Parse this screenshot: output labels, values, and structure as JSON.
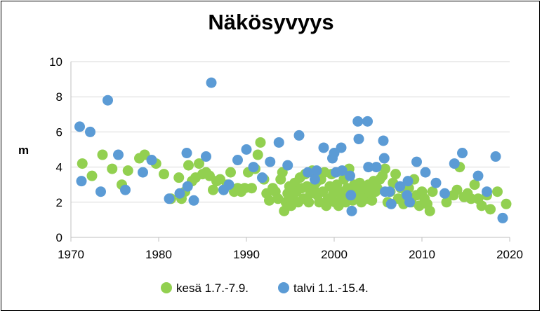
{
  "chart_data": {
    "type": "scatter",
    "title": "Näkösyvyys",
    "ylabel": "m",
    "xlabel": "",
    "xlim": [
      1970,
      2020
    ],
    "ylim": [
      0,
      10
    ],
    "x_ticks": [
      "1970",
      "1980",
      "1990",
      "2000",
      "2010",
      "2020"
    ],
    "y_ticks": [
      "0",
      "2",
      "4",
      "6",
      "8",
      "10"
    ],
    "grid": "horizontal",
    "legend": "bottom",
    "series": [
      {
        "name": "kesä 1.7.-7.9.",
        "color": "#92d050",
        "points": [
          [
            1971.3,
            4.2
          ],
          [
            1972.4,
            3.5
          ],
          [
            1973.6,
            4.7
          ],
          [
            1974.7,
            3.9
          ],
          [
            1975.8,
            3.0
          ],
          [
            1976.5,
            3.8
          ],
          [
            1977.8,
            4.5
          ],
          [
            1978.4,
            4.7
          ],
          [
            1979.7,
            4.2
          ],
          [
            1980.6,
            3.6
          ],
          [
            1981.4,
            2.2
          ],
          [
            1982.3,
            3.4
          ],
          [
            1982.6,
            2.2
          ],
          [
            1983.0,
            2.6
          ],
          [
            1983.4,
            4.1
          ],
          [
            1983.8,
            3.2
          ],
          [
            1984.2,
            3.4
          ],
          [
            1984.6,
            4.2
          ],
          [
            1985.0,
            3.6
          ],
          [
            1985.4,
            3.7
          ],
          [
            1985.8,
            3.5
          ],
          [
            1986.2,
            2.7
          ],
          [
            1986.6,
            3.2
          ],
          [
            1987.0,
            3.3
          ],
          [
            1987.4,
            2.7
          ],
          [
            1987.8,
            3.0
          ],
          [
            1988.2,
            3.7
          ],
          [
            1988.6,
            2.6
          ],
          [
            1989.0,
            2.8
          ],
          [
            1989.4,
            2.6
          ],
          [
            1989.8,
            2.8
          ],
          [
            1990.2,
            3.7
          ],
          [
            1990.6,
            2.8
          ],
          [
            1991.0,
            3.9
          ],
          [
            1991.3,
            4.7
          ],
          [
            1991.6,
            5.4
          ],
          [
            1992.0,
            3.3
          ],
          [
            1992.3,
            2.5
          ],
          [
            1992.6,
            2.1
          ],
          [
            1993.0,
            2.8
          ],
          [
            1993.3,
            2.6
          ],
          [
            1993.6,
            2.2
          ],
          [
            1993.9,
            3.3
          ],
          [
            1994.1,
            3.7
          ],
          [
            1994.3,
            1.5
          ],
          [
            1994.5,
            2.0
          ],
          [
            1994.7,
            2.5
          ],
          [
            1994.9,
            2.9
          ],
          [
            1995.1,
            1.8
          ],
          [
            1995.3,
            2.3
          ],
          [
            1995.5,
            3.1
          ],
          [
            1995.7,
            2.6
          ],
          [
            1995.9,
            2.0
          ],
          [
            1996.1,
            3.4
          ],
          [
            1996.3,
            2.8
          ],
          [
            1996.5,
            2.2
          ],
          [
            1996.7,
            3.6
          ],
          [
            1996.9,
            2.9
          ],
          [
            1997.1,
            2.0
          ],
          [
            1997.3,
            2.5
          ],
          [
            1997.5,
            3.8
          ],
          [
            1997.7,
            2.7
          ],
          [
            1997.9,
            3.1
          ],
          [
            1998.1,
            2.4
          ],
          [
            1998.3,
            2.0
          ],
          [
            1998.5,
            3.3
          ],
          [
            1998.7,
            2.6
          ],
          [
            1998.9,
            3.7
          ],
          [
            1999.1,
            1.8
          ],
          [
            1999.3,
            2.2
          ],
          [
            1999.5,
            2.9
          ],
          [
            1999.7,
            3.6
          ],
          [
            1999.9,
            2.5
          ],
          [
            2000.1,
            2.0
          ],
          [
            2000.3,
            3.0
          ],
          [
            2000.5,
            1.8
          ],
          [
            2000.7,
            2.6
          ],
          [
            2000.9,
            2.3
          ],
          [
            2001.1,
            3.3
          ],
          [
            2001.3,
            2.0
          ],
          [
            2001.5,
            2.8
          ],
          [
            2001.7,
            3.9
          ],
          [
            2001.9,
            2.4
          ],
          [
            2002.1,
            2.1
          ],
          [
            2002.3,
            3.0
          ],
          [
            2002.5,
            2.6
          ],
          [
            2002.7,
            2.2
          ],
          [
            2002.9,
            3.1
          ],
          [
            2003.1,
            2.0
          ],
          [
            2003.3,
            2.4
          ],
          [
            2003.5,
            2.8
          ],
          [
            2003.7,
            2.2
          ],
          [
            2003.9,
            3.0
          ],
          [
            2004.1,
            2.5
          ],
          [
            2004.3,
            2.1
          ],
          [
            2004.5,
            3.2
          ],
          [
            2004.7,
            2.6
          ],
          [
            2004.9,
            2.8
          ],
          [
            2005.2,
            3.3
          ],
          [
            2005.5,
            3.5
          ],
          [
            2005.8,
            3.9
          ],
          [
            2006.1,
            2.0
          ],
          [
            2006.4,
            2.6
          ],
          [
            2006.7,
            3.1
          ],
          [
            2007.0,
            3.6
          ],
          [
            2007.3,
            2.2
          ],
          [
            2007.6,
            2.8
          ],
          [
            2007.9,
            1.9
          ],
          [
            2008.2,
            2.4
          ],
          [
            2008.5,
            2.8
          ],
          [
            2008.8,
            2.0
          ],
          [
            2009.1,
            3.3
          ],
          [
            2009.4,
            2.4
          ],
          [
            2009.7,
            1.8
          ],
          [
            2010.0,
            2.6
          ],
          [
            2010.3,
            2.2
          ],
          [
            2010.6,
            1.9
          ],
          [
            2010.9,
            1.5
          ],
          [
            2011.2,
            2.6
          ],
          [
            2012.8,
            2.0
          ],
          [
            2013.6,
            2.4
          ],
          [
            2014.0,
            2.7
          ],
          [
            2014.3,
            4.0
          ],
          [
            2014.8,
            2.3
          ],
          [
            2015.2,
            2.5
          ],
          [
            2015.6,
            2.2
          ],
          [
            2016.0,
            3.0
          ],
          [
            2016.4,
            2.2
          ],
          [
            2016.8,
            1.8
          ],
          [
            2017.4,
            2.4
          ],
          [
            2017.8,
            1.6
          ],
          [
            2018.6,
            2.6
          ],
          [
            2019.6,
            1.9
          ]
        ]
      },
      {
        "name": "talvi 1.1.-15.4.",
        "color": "#5b9bd5",
        "points": [
          [
            1971.0,
            6.3
          ],
          [
            1971.2,
            3.2
          ],
          [
            1972.2,
            6.0
          ],
          [
            1973.4,
            2.6
          ],
          [
            1974.2,
            7.8
          ],
          [
            1975.4,
            4.7
          ],
          [
            1976.2,
            2.7
          ],
          [
            1978.2,
            3.7
          ],
          [
            1979.2,
            4.4
          ],
          [
            1981.2,
            2.2
          ],
          [
            1982.4,
            2.5
          ],
          [
            1983.2,
            4.8
          ],
          [
            1983.3,
            2.9
          ],
          [
            1984.0,
            2.1
          ],
          [
            1985.4,
            4.6
          ],
          [
            1986.0,
            8.8
          ],
          [
            1987.4,
            2.7
          ],
          [
            1988.0,
            3.0
          ],
          [
            1989.0,
            4.4
          ],
          [
            1990.0,
            5.0
          ],
          [
            1990.8,
            4.0
          ],
          [
            1991.8,
            3.4
          ],
          [
            1992.7,
            4.3
          ],
          [
            1993.7,
            5.4
          ],
          [
            1994.7,
            4.1
          ],
          [
            1996.0,
            5.8
          ],
          [
            1997.0,
            3.7
          ],
          [
            1997.8,
            3.3
          ],
          [
            1998.0,
            3.8
          ],
          [
            1998.8,
            5.1
          ],
          [
            1999.8,
            4.5
          ],
          [
            2000.0,
            4.8
          ],
          [
            2000.2,
            3.7
          ],
          [
            2000.8,
            5.1
          ],
          [
            2000.9,
            3.8
          ],
          [
            2001.8,
            3.5
          ],
          [
            2001.9,
            2.4
          ],
          [
            2002.0,
            1.5
          ],
          [
            2002.7,
            6.6
          ],
          [
            2002.8,
            5.6
          ],
          [
            2003.8,
            6.6
          ],
          [
            2003.9,
            4.0
          ],
          [
            2004.8,
            4.0
          ],
          [
            2005.6,
            5.5
          ],
          [
            2005.7,
            4.5
          ],
          [
            2005.8,
            2.6
          ],
          [
            2006.3,
            2.6
          ],
          [
            2006.5,
            1.9
          ],
          [
            2007.5,
            2.9
          ],
          [
            2008.3,
            2.4
          ],
          [
            2008.4,
            3.2
          ],
          [
            2008.6,
            2.0
          ],
          [
            2009.4,
            4.3
          ],
          [
            2010.4,
            3.7
          ],
          [
            2011.6,
            3.1
          ],
          [
            2012.6,
            2.5
          ],
          [
            2013.7,
            4.2
          ],
          [
            2014.6,
            4.8
          ],
          [
            2016.4,
            3.5
          ],
          [
            2017.4,
            2.6
          ],
          [
            2018.4,
            4.6
          ],
          [
            2019.2,
            1.1
          ]
        ]
      }
    ]
  }
}
